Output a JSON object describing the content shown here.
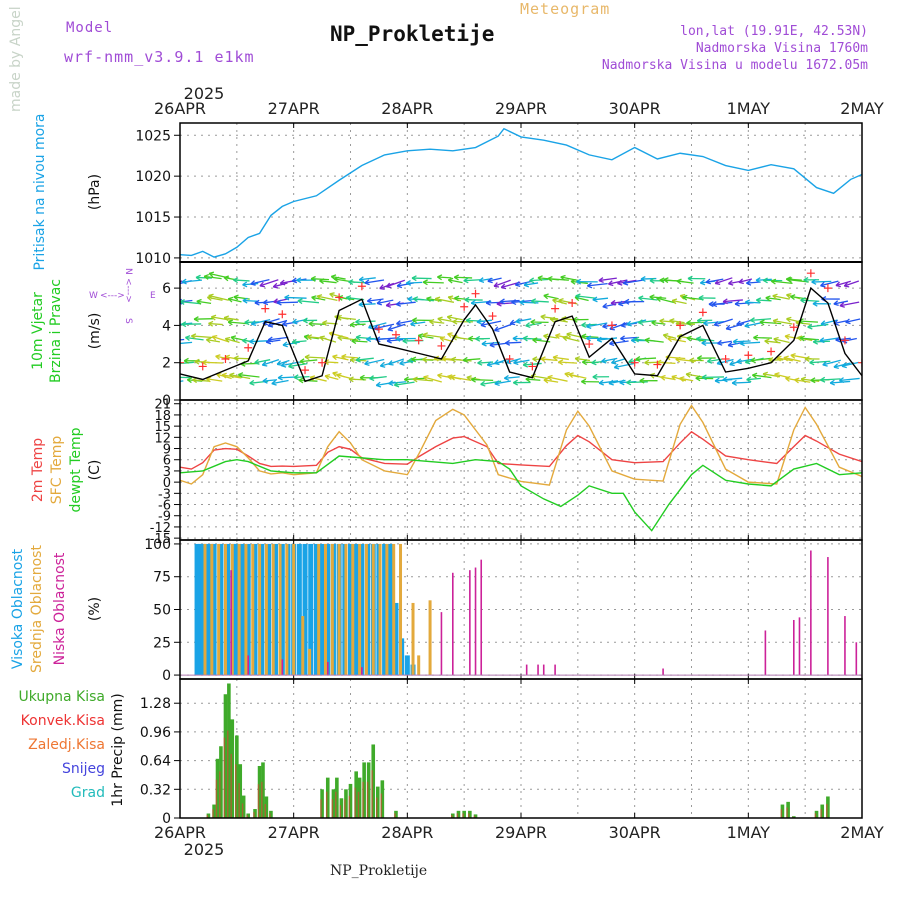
{
  "header": {
    "model_label": "Model",
    "model_version": "wrf-nmm_v3.9.1  e1km",
    "meteogram_label": "Meteogram",
    "title": "NP_Prokletije",
    "location": "lon,lat (19.91E, 42.53N)",
    "altitude": "Nadmorska Visina 1760m",
    "model_altitude": "Nadmorska Visina u modelu 1672.05m"
  },
  "footer": "NP_Prokletije",
  "watermark": "made by Angel",
  "time_axis": {
    "year_top": "2025",
    "year_bottom": "2025",
    "labels": [
      "26APR",
      "27APR",
      "28APR",
      "29APR",
      "30APR",
      "1MAY",
      "2MAY"
    ]
  },
  "colors": {
    "pressure": "#1aa3e6",
    "temp2m": "#ee4444",
    "sfc_temp": "#e3a93c",
    "dewpt": "#22cc22",
    "wind_speed": "#000000",
    "gust": "#ff3030",
    "cloud_high": "#1aa3e6",
    "cloud_mid": "#e3a93c",
    "cloud_low": "#cc2299",
    "precip_total": "#3faa2a",
    "precip_conv": "#ee3333",
    "precip_frozen": "#ee7733",
    "precip_snow": "#4444dd",
    "precip_grad": "#22bbbb",
    "wind_label": "#22cc22",
    "compass": "#a04cd6"
  },
  "chart_data": [
    {
      "type": "line",
      "panel": "pressure",
      "ylabel": "Pritisak na nivou mora",
      "unit": "(hPa)",
      "ylim": [
        1009.5,
        1026.5
      ],
      "yticks": [
        "1010",
        "1015",
        "1020",
        "1025"
      ],
      "ytick_values": [
        1010,
        1015,
        1020,
        1025
      ],
      "grid": true,
      "x_days": [
        0,
        0.1,
        0.2,
        0.3,
        0.4,
        0.5,
        0.6,
        0.7,
        0.8,
        0.9,
        1.0,
        1.2,
        1.4,
        1.6,
        1.8,
        2.0,
        2.2,
        2.4,
        2.6,
        2.8,
        2.85,
        3.0,
        3.2,
        3.4,
        3.6,
        3.8,
        4.0,
        4.2,
        4.4,
        4.6,
        4.8,
        5.0,
        5.2,
        5.4,
        5.6,
        5.75,
        5.9,
        6.0
      ],
      "values": [
        1010.4,
        1010.3,
        1010.8,
        1010.1,
        1010.5,
        1011.3,
        1012.5,
        1013.0,
        1015.2,
        1016.3,
        1016.9,
        1017.6,
        1019.5,
        1021.3,
        1022.6,
        1023.1,
        1023.3,
        1023.1,
        1023.5,
        1024.9,
        1025.8,
        1024.8,
        1024.4,
        1023.8,
        1022.6,
        1022.0,
        1023.5,
        1022.1,
        1022.8,
        1022.4,
        1021.3,
        1020.7,
        1021.4,
        1020.9,
        1018.6,
        1017.9,
        1019.6,
        1020.2
      ]
    },
    {
      "type": "line",
      "panel": "wind",
      "ylabel": "10m Vjetar Brzina i Pravac",
      "unit": "(m/s)",
      "compass_labels": [
        "W",
        "E",
        "N",
        "S"
      ],
      "ylim": [
        0,
        7.4
      ],
      "yticks": [
        "0",
        "2",
        "4",
        "6"
      ],
      "ytick_values": [
        0,
        2,
        4,
        6
      ],
      "grid": true,
      "series": [
        {
          "name": "speed",
          "x_days": [
            0,
            0.2,
            0.4,
            0.6,
            0.75,
            0.9,
            1.1,
            1.25,
            1.4,
            1.6,
            1.75,
            1.9,
            2.1,
            2.3,
            2.5,
            2.6,
            2.75,
            2.9,
            3.1,
            3.3,
            3.45,
            3.6,
            3.8,
            4.0,
            4.2,
            4.4,
            4.6,
            4.8,
            5.0,
            5.2,
            5.4,
            5.55,
            5.7,
            5.85,
            6.0
          ],
          "values": [
            1.4,
            1.1,
            1.6,
            2.1,
            4.2,
            4.0,
            1.0,
            1.3,
            4.8,
            5.4,
            3.0,
            2.8,
            2.5,
            2.2,
            4.3,
            5.1,
            3.8,
            1.5,
            1.2,
            4.2,
            4.5,
            2.3,
            3.3,
            1.4,
            1.3,
            3.4,
            4.0,
            1.5,
            1.7,
            2.0,
            3.2,
            6.0,
            5.2,
            2.5,
            1.3
          ]
        },
        {
          "name": "gust",
          "x_days": [
            0,
            0.2,
            0.4,
            0.6,
            0.75,
            0.9,
            1.1,
            1.25,
            1.4,
            1.6,
            1.75,
            1.9,
            2.1,
            2.3,
            2.5,
            2.6,
            2.75,
            2.9,
            3.1,
            3.3,
            3.45,
            3.6,
            3.8,
            4.0,
            4.2,
            4.4,
            4.6,
            4.8,
            5.0,
            5.2,
            5.4,
            5.55,
            5.7,
            5.85,
            6.0
          ],
          "values": [
            2.0,
            1.8,
            2.2,
            2.8,
            4.9,
            4.6,
            1.6,
            2.0,
            5.5,
            6.1,
            3.8,
            3.5,
            3.2,
            2.9,
            5.0,
            5.7,
            4.5,
            2.2,
            1.8,
            4.9,
            5.2,
            3.0,
            4.0,
            2.0,
            1.9,
            4.0,
            4.7,
            2.2,
            2.4,
            2.6,
            3.9,
            6.8,
            6.0,
            3.2,
            2.0
          ]
        }
      ]
    },
    {
      "type": "line",
      "panel": "temperature",
      "ylabels": [
        "2m Temp",
        "SFC Temp",
        "dewpt Temp"
      ],
      "unit": "(C)",
      "ylim": [
        -15.5,
        22
      ],
      "yticks": [
        "-15",
        "-12",
        "-9",
        "-6",
        "-3",
        "0",
        "3",
        "6",
        "9",
        "12",
        "15",
        "18",
        "21"
      ],
      "ytick_values": [
        -15,
        -12,
        -9,
        -6,
        -3,
        0,
        3,
        6,
        9,
        12,
        15,
        18,
        21
      ],
      "grid": true,
      "series": [
        {
          "name": "2m Temp",
          "x_days": [
            0,
            0.1,
            0.2,
            0.3,
            0.4,
            0.5,
            0.6,
            0.7,
            0.8,
            0.9,
            1.0,
            1.2,
            1.3,
            1.4,
            1.5,
            1.6,
            1.8,
            2.0,
            2.1,
            2.25,
            2.4,
            2.5,
            2.7,
            2.8,
            3.0,
            3.25,
            3.4,
            3.5,
            3.6,
            3.8,
            4.0,
            4.25,
            4.4,
            4.5,
            4.6,
            4.8,
            5.0,
            5.25,
            5.4,
            5.5,
            5.6,
            5.8,
            6.0
          ],
          "values": [
            4.0,
            3.5,
            5.2,
            8.6,
            9.0,
            8.8,
            7.0,
            5.0,
            4.2,
            4.3,
            4.2,
            4.5,
            8.0,
            9.5,
            8.8,
            6.5,
            5.0,
            4.8,
            6.8,
            9.5,
            11.8,
            12.2,
            9.5,
            5.0,
            4.6,
            4.2,
            9.8,
            12.5,
            10.8,
            6.0,
            5.2,
            5.5,
            10.5,
            13.5,
            11.5,
            7.0,
            6.0,
            5.0,
            9.5,
            12.5,
            11.0,
            7.5,
            5.5
          ]
        },
        {
          "name": "SFC Temp",
          "x_days": [
            0,
            0.1,
            0.2,
            0.3,
            0.4,
            0.5,
            0.6,
            0.7,
            0.8,
            0.9,
            1.0,
            1.2,
            1.3,
            1.4,
            1.5,
            1.6,
            1.8,
            2.0,
            2.1,
            2.25,
            2.4,
            2.5,
            2.7,
            2.8,
            3.0,
            3.25,
            3.4,
            3.5,
            3.6,
            3.8,
            4.0,
            4.25,
            4.4,
            4.5,
            4.6,
            4.8,
            5.0,
            5.25,
            5.4,
            5.5,
            5.6,
            5.8,
            6.0
          ],
          "values": [
            0.5,
            -0.5,
            2.0,
            9.5,
            10.5,
            9.5,
            6.5,
            3.0,
            2.2,
            2.5,
            2.0,
            2.5,
            9.5,
            13.5,
            10.5,
            6.0,
            3.0,
            2.0,
            7.5,
            16.5,
            19.5,
            18.0,
            10.0,
            2.0,
            0.2,
            -0.8,
            14.0,
            19.0,
            15.0,
            3.0,
            0.8,
            0.3,
            15.5,
            20.5,
            16.0,
            3.5,
            0.0,
            -0.5,
            14.0,
            20.0,
            15.5,
            4.0,
            1.5
          ]
        },
        {
          "name": "dewpt Temp",
          "x_days": [
            0,
            0.2,
            0.4,
            0.5,
            0.6,
            0.8,
            1.0,
            1.2,
            1.4,
            1.6,
            1.8,
            2.0,
            2.2,
            2.4,
            2.6,
            2.8,
            2.9,
            3.0,
            3.2,
            3.35,
            3.5,
            3.6,
            3.8,
            3.9,
            4.0,
            4.15,
            4.3,
            4.5,
            4.6,
            4.8,
            5.0,
            5.2,
            5.4,
            5.6,
            5.8,
            6.0
          ],
          "values": [
            2.5,
            3.0,
            5.5,
            6.0,
            5.5,
            3.0,
            2.5,
            2.5,
            7.0,
            6.5,
            6.0,
            6.0,
            5.5,
            5.0,
            6.0,
            5.5,
            3.5,
            -1.0,
            -4.5,
            -6.5,
            -3.5,
            -1.0,
            -3.0,
            -3.0,
            -8.0,
            -13.0,
            -6.0,
            2.0,
            4.5,
            0.5,
            -0.5,
            -1.0,
            3.5,
            5.0,
            2.0,
            2.5
          ]
        }
      ]
    },
    {
      "type": "bar",
      "panel": "cloud",
      "ylabels": [
        "Visoka Oblacnost",
        "Srednja Oblacnost",
        "Niska Oblacnost"
      ],
      "unit": "(%)",
      "ylim": [
        -3,
        103
      ],
      "yticks": [
        "0",
        "25",
        "50",
        "75",
        "100"
      ],
      "ytick_values": [
        0,
        25,
        50,
        75,
        100
      ],
      "grid": true,
      "series": [
        {
          "name": "Visoka Oblacnost",
          "x_days": [
            0.15,
            0.18,
            0.2,
            0.23,
            0.27,
            0.3,
            0.36,
            0.42,
            0.48,
            0.5,
            0.55,
            0.6,
            0.66,
            0.72,
            0.78,
            0.84,
            0.9,
            0.95,
            1.0,
            1.05,
            1.1,
            1.15,
            1.2,
            1.25,
            1.3,
            1.35,
            1.4,
            1.45,
            1.5,
            1.55,
            1.6,
            1.65,
            1.7,
            1.75,
            1.8,
            1.85,
            1.9,
            1.95,
            2.0,
            2.05
          ],
          "values": [
            100,
            100,
            100,
            100,
            100,
            100,
            100,
            100,
            100,
            100,
            100,
            100,
            100,
            100,
            100,
            100,
            100,
            100,
            100,
            100,
            100,
            100,
            100,
            100,
            100,
            100,
            100,
            100,
            100,
            100,
            100,
            100,
            100,
            100,
            100,
            100,
            55,
            28,
            15,
            8
          ]
        },
        {
          "name": "Srednja Oblacnost",
          "x_days": [
            0.22,
            0.28,
            0.34,
            0.4,
            0.46,
            0.52,
            0.58,
            0.64,
            0.7,
            0.76,
            0.82,
            0.88,
            0.94,
            1.0,
            1.08,
            1.14,
            1.22,
            1.28,
            1.34,
            1.4,
            1.46,
            1.52,
            1.58,
            1.64,
            1.7,
            1.76,
            1.82,
            1.88,
            1.94,
            2.05,
            2.1,
            2.2
          ],
          "values": [
            100,
            100,
            100,
            100,
            100,
            100,
            100,
            100,
            100,
            100,
            100,
            100,
            100,
            100,
            45,
            20,
            100,
            100,
            100,
            100,
            100,
            100,
            100,
            100,
            100,
            100,
            100,
            100,
            100,
            55,
            15,
            57
          ]
        },
        {
          "name": "Niska Oblacnost",
          "x_days": [
            0.45,
            0.6,
            0.9,
            1.3,
            1.6,
            2.3,
            2.4,
            2.55,
            2.6,
            2.65,
            3.05,
            3.15,
            3.2,
            3.3,
            4.25,
            5.15,
            5.4,
            5.45,
            5.55,
            5.7,
            5.85,
            5.95
          ],
          "values": [
            80,
            15,
            12,
            10,
            6,
            48,
            78,
            80,
            82,
            88,
            8,
            8,
            8,
            8,
            5,
            34,
            42,
            44,
            95,
            90,
            45,
            25
          ]
        }
      ]
    },
    {
      "type": "bar",
      "panel": "precip",
      "ylabel": "1hr Precip (mm)",
      "legend": [
        "Ukupna Kisa",
        "Konvek.Kisa",
        "Zaledj.Kisa",
        "Snijeg",
        "Grad"
      ],
      "ylim": [
        0,
        1.55
      ],
      "yticks": [
        "0",
        "0.32",
        "0.64",
        "0.96",
        "1.28"
      ],
      "ytick_values": [
        0,
        0.32,
        0.64,
        0.96,
        1.28
      ],
      "grid": true,
      "series": [
        {
          "name": "Ukupna Kisa",
          "x_days": [
            0.25,
            0.3,
            0.33,
            0.36,
            0.4,
            0.43,
            0.46,
            0.5,
            0.53,
            0.56,
            0.6,
            0.66,
            0.7,
            0.73,
            0.76,
            0.8,
            1.25,
            1.3,
            1.35,
            1.38,
            1.42,
            1.46,
            1.5,
            1.55,
            1.58,
            1.62,
            1.66,
            1.7,
            1.74,
            1.78,
            1.9,
            2.4,
            2.45,
            2.5,
            2.55,
            2.6,
            5.3,
            5.35,
            5.4,
            5.6,
            5.65,
            5.7
          ],
          "values": [
            0.05,
            0.15,
            0.66,
            0.8,
            1.38,
            1.5,
            1.1,
            0.92,
            0.6,
            0.25,
            0.05,
            0.1,
            0.58,
            0.62,
            0.24,
            0.08,
            0.32,
            0.45,
            0.32,
            0.45,
            0.22,
            0.32,
            0.38,
            0.52,
            0.45,
            0.62,
            0.62,
            0.82,
            0.35,
            0.42,
            0.08,
            0.05,
            0.08,
            0.08,
            0.08,
            0.04,
            0.15,
            0.18,
            0.02,
            0.08,
            0.15,
            0.24
          ]
        }
      ]
    }
  ]
}
